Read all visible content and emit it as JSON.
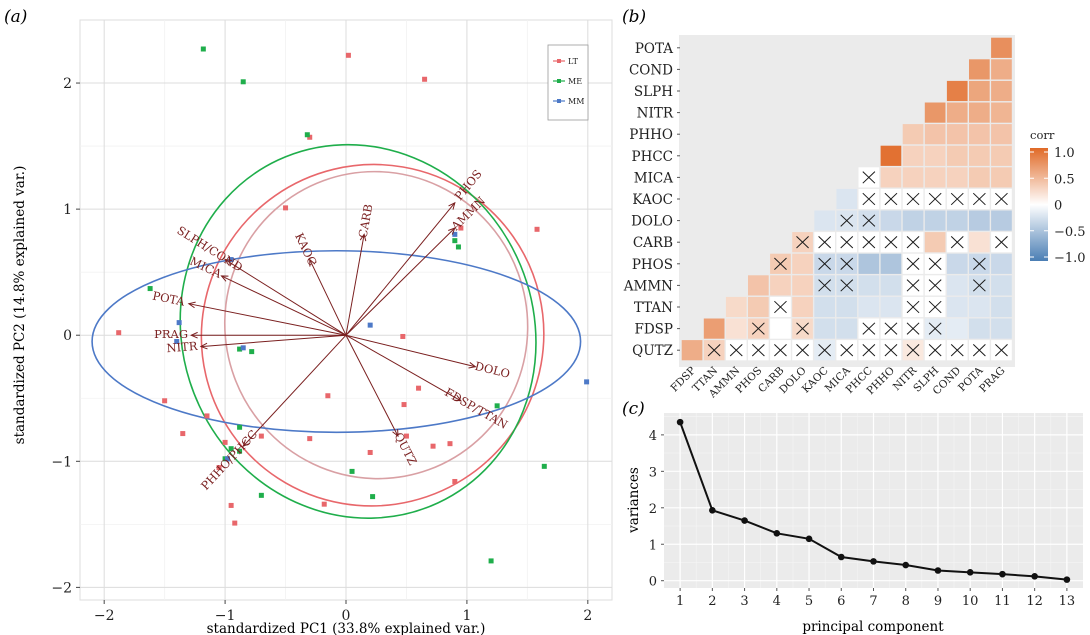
{
  "panel_labels": {
    "a": "(a)",
    "b": "(b)",
    "c": "(c)"
  },
  "chart_data": [
    {
      "type": "scatter",
      "panel": "(a)",
      "xlabel": "standardized PC1 (33.8% explained var.)",
      "ylabel": "standardized PC2 (14.8% explained var.)",
      "xlim": [
        -2.2,
        2.2
      ],
      "ylim": [
        -2.1,
        2.5
      ],
      "xticks": [
        -2,
        -1,
        0,
        1,
        2
      ],
      "yticks": [
        -2,
        -1,
        0,
        1,
        2
      ],
      "grid": true,
      "legend_position": "top-right",
      "series": [
        {
          "name": "LT",
          "color": "#e8676b",
          "points": [
            [
              0.02,
              2.22
            ],
            [
              0.65,
              2.03
            ],
            [
              -0.3,
              1.57
            ],
            [
              -0.5,
              1.01
            ],
            [
              0.95,
              0.85
            ],
            [
              1.58,
              0.84
            ],
            [
              0.47,
              -0.01
            ],
            [
              -0.15,
              -0.48
            ],
            [
              0.48,
              -0.55
            ],
            [
              0.6,
              -0.42
            ],
            [
              -0.7,
              -0.8
            ],
            [
              -1.0,
              -0.85
            ],
            [
              -0.3,
              -0.82
            ],
            [
              0.2,
              -0.93
            ],
            [
              0.72,
              -0.88
            ],
            [
              0.86,
              -0.86
            ],
            [
              -1.15,
              -0.64
            ],
            [
              -1.35,
              -0.78
            ],
            [
              -1.05,
              -1.05
            ],
            [
              -0.95,
              -1.35
            ],
            [
              -0.18,
              -1.34
            ],
            [
              -0.92,
              -1.49
            ],
            [
              -1.88,
              0.02
            ],
            [
              0.9,
              -1.16
            ],
            [
              -1.5,
              -0.52
            ],
            [
              0.5,
              -0.8
            ]
          ]
        },
        {
          "name": "ME",
          "color": "#1fae4b",
          "points": [
            [
              -1.18,
              2.27
            ],
            [
              -0.85,
              2.01
            ],
            [
              -0.32,
              1.59
            ],
            [
              0.9,
              0.75
            ],
            [
              0.93,
              0.7
            ],
            [
              -1.62,
              0.37
            ],
            [
              -0.88,
              -0.11
            ],
            [
              -0.78,
              -0.13
            ],
            [
              -0.88,
              -0.73
            ],
            [
              -0.95,
              -0.9
            ],
            [
              -1.0,
              -0.98
            ],
            [
              -0.88,
              -0.92
            ],
            [
              0.05,
              -1.08
            ],
            [
              0.22,
              -1.28
            ],
            [
              1.2,
              -1.79
            ],
            [
              1.64,
              -1.04
            ],
            [
              1.25,
              -0.56
            ],
            [
              -0.7,
              -1.27
            ]
          ]
        },
        {
          "name": "MM",
          "color": "#4d79c7",
          "points": [
            [
              -1.38,
              0.1
            ],
            [
              -0.95,
              0.6
            ],
            [
              -0.85,
              -0.1
            ],
            [
              0.2,
              0.08
            ],
            [
              -0.98,
              -0.98
            ],
            [
              1.99,
              -0.37
            ],
            [
              0.9,
              0.8
            ],
            [
              -1.4,
              -0.05
            ]
          ]
        }
      ],
      "loadings": [
        {
          "label": "SLPH/COND",
          "x": -1.0,
          "y": 0.6
        },
        {
          "label": "MICA",
          "x": -1.03,
          "y": 0.47
        },
        {
          "label": "POTA",
          "x": -1.3,
          "y": 0.25
        },
        {
          "label": "PRAG",
          "x": -1.28,
          "y": 0.0
        },
        {
          "label": "NITR",
          "x": -1.2,
          "y": -0.09
        },
        {
          "label": "KAOC",
          "x": -0.3,
          "y": 0.6
        },
        {
          "label": "CARB",
          "x": 0.15,
          "y": 0.8
        },
        {
          "label": "PHOS",
          "x": 0.9,
          "y": 1.05
        },
        {
          "label": "AMMN",
          "x": 0.9,
          "y": 0.85
        },
        {
          "label": "DOLO",
          "x": 1.07,
          "y": -0.25
        },
        {
          "label": "FDSP/TTAN",
          "x": 0.95,
          "y": -0.52
        },
        {
          "label": "QUTZ",
          "x": 0.43,
          "y": -0.8
        },
        {
          "label": "PHHO/PHCC",
          "x": -0.85,
          "y": -0.88
        }
      ]
    },
    {
      "type": "heatmap",
      "panel": "(b)",
      "variables_order": [
        "FDSP",
        "TTAN",
        "AMMN",
        "PHOS",
        "CARB",
        "DOLO",
        "KAOC",
        "MICA",
        "PHCC",
        "PHHO",
        "NITR",
        "SLPH",
        "COND",
        "POTA",
        "PRAG"
      ],
      "x_labels": [
        "FDSP",
        "TTAN",
        "AMMN",
        "PHOS",
        "CARB",
        "DOLO",
        "KAOC",
        "MICA",
        "PHCC",
        "PHHO",
        "NITR",
        "SLPH",
        "COND",
        "POTA",
        "PRAG"
      ],
      "y_labels": [
        "QUTZ",
        "FDSP",
        "TTAN",
        "AMMN",
        "PHOS",
        "CARB",
        "DOLO",
        "KAOC",
        "MICA",
        "PHCC",
        "PHHO",
        "NITR",
        "SLPH",
        "COND",
        "POTA"
      ],
      "legend": {
        "title": "corr",
        "ticks": [
          "1.0",
          "0.5",
          "0",
          "−0.5",
          "−1.0"
        ],
        "low": "#4a7eb4",
        "mid": "#ffffff",
        "high": "#e06a27"
      },
      "cells": [
        {
          "row": "QUTZ",
          "values": [
            0.55,
            0.3,
            null,
            null,
            null,
            null,
            -0.15,
            null,
            null,
            null,
            0.15,
            null,
            null,
            null,
            null
          ],
          "crossed": [
            false,
            true,
            true,
            true,
            true,
            true,
            true,
            true,
            true,
            true,
            true,
            true,
            true,
            true,
            true
          ]
        },
        {
          "row": "FDSP",
          "values": [
            null,
            0.65,
            0.2,
            0.3,
            null,
            0.25,
            -0.25,
            -0.25,
            null,
            null,
            null,
            -0.15,
            -0.15,
            -0.25,
            -0.25
          ],
          "crossed": [
            null,
            false,
            false,
            true,
            false,
            true,
            false,
            false,
            true,
            true,
            true,
            true,
            false,
            false,
            false
          ]
        },
        {
          "row": "TTAN",
          "values": [
            null,
            null,
            0.25,
            0.35,
            null,
            0.3,
            -0.25,
            -0.25,
            -0.2,
            -0.2,
            null,
            null,
            -0.2,
            -0.2,
            -0.25
          ],
          "crossed": [
            null,
            null,
            false,
            false,
            true,
            false,
            false,
            false,
            false,
            false,
            true,
            true,
            false,
            false,
            false
          ]
        },
        {
          "row": "AMMN",
          "values": [
            null,
            null,
            null,
            0.4,
            0.3,
            0.3,
            -0.25,
            -0.25,
            -0.25,
            -0.25,
            null,
            null,
            -0.2,
            -0.25,
            -0.25
          ],
          "crossed": [
            null,
            null,
            null,
            false,
            false,
            false,
            true,
            true,
            false,
            false,
            true,
            true,
            false,
            true,
            false
          ]
        },
        {
          "row": "PHOS",
          "values": [
            null,
            null,
            null,
            null,
            0.35,
            0.3,
            -0.3,
            -0.3,
            -0.45,
            -0.45,
            null,
            null,
            -0.3,
            -0.3,
            -0.3
          ],
          "crossed": [
            null,
            null,
            null,
            null,
            true,
            false,
            true,
            true,
            false,
            false,
            true,
            true,
            false,
            true,
            false
          ]
        },
        {
          "row": "CARB",
          "values": [
            null,
            null,
            null,
            null,
            null,
            0.3,
            null,
            null,
            null,
            null,
            null,
            0.35,
            null,
            0.2,
            null
          ],
          "crossed": [
            null,
            null,
            null,
            null,
            null,
            true,
            true,
            true,
            true,
            true,
            true,
            false,
            true,
            false,
            true
          ]
        },
        {
          "row": "DOLO",
          "values": [
            null,
            null,
            null,
            null,
            null,
            null,
            -0.2,
            -0.2,
            -0.25,
            -0.3,
            -0.35,
            -0.35,
            -0.35,
            -0.4,
            -0.4
          ],
          "crossed": [
            null,
            null,
            null,
            null,
            null,
            null,
            false,
            true,
            true,
            false,
            false,
            false,
            false,
            false,
            false
          ]
        },
        {
          "row": "KAOC",
          "values": [
            null,
            null,
            null,
            null,
            null,
            null,
            null,
            -0.2,
            null,
            null,
            null,
            null,
            null,
            null,
            null
          ],
          "crossed": [
            null,
            null,
            null,
            null,
            null,
            null,
            null,
            false,
            true,
            true,
            true,
            true,
            true,
            true,
            true
          ]
        },
        {
          "row": "MICA",
          "values": [
            null,
            null,
            null,
            null,
            null,
            null,
            null,
            null,
            null,
            0.3,
            0.3,
            0.3,
            0.3,
            0.35,
            0.35
          ],
          "crossed": [
            null,
            null,
            null,
            null,
            null,
            null,
            null,
            null,
            true,
            false,
            false,
            false,
            false,
            false,
            false
          ]
        },
        {
          "row": "PHCC",
          "values": [
            null,
            null,
            null,
            null,
            null,
            null,
            null,
            null,
            null,
            0.95,
            0.3,
            0.3,
            0.35,
            0.35,
            0.35
          ],
          "crossed": [
            null,
            null,
            null,
            null,
            null,
            null,
            null,
            null,
            null,
            false,
            false,
            false,
            false,
            false,
            false
          ]
        },
        {
          "row": "PHHO",
          "values": [
            null,
            null,
            null,
            null,
            null,
            null,
            null,
            null,
            null,
            null,
            0.35,
            0.4,
            0.4,
            0.4,
            0.4
          ],
          "crossed": [
            null,
            null,
            null,
            null,
            null,
            null,
            null,
            null,
            null,
            null,
            false,
            false,
            false,
            false,
            false
          ]
        },
        {
          "row": "NITR",
          "values": [
            null,
            null,
            null,
            null,
            null,
            null,
            null,
            null,
            null,
            null,
            null,
            0.7,
            0.55,
            0.55,
            0.5
          ],
          "crossed": [
            null,
            null,
            null,
            null,
            null,
            null,
            null,
            null,
            null,
            null,
            null,
            false,
            false,
            false,
            false
          ]
        },
        {
          "row": "SLPH",
          "values": [
            null,
            null,
            null,
            null,
            null,
            null,
            null,
            null,
            null,
            null,
            null,
            null,
            0.85,
            0.6,
            0.55
          ],
          "crossed": [
            null,
            null,
            null,
            null,
            null,
            null,
            null,
            null,
            null,
            null,
            null,
            null,
            false,
            false,
            false
          ]
        },
        {
          "row": "COND",
          "values": [
            null,
            null,
            null,
            null,
            null,
            null,
            null,
            null,
            null,
            null,
            null,
            null,
            null,
            0.7,
            0.55
          ],
          "crossed": [
            null,
            null,
            null,
            null,
            null,
            null,
            null,
            null,
            null,
            null,
            null,
            null,
            null,
            false,
            false
          ]
        },
        {
          "row": "POTA",
          "values": [
            null,
            null,
            null,
            null,
            null,
            null,
            null,
            null,
            null,
            null,
            null,
            null,
            null,
            null,
            0.75
          ],
          "crossed": [
            null,
            null,
            null,
            null,
            null,
            null,
            null,
            null,
            null,
            null,
            null,
            null,
            null,
            null,
            false
          ]
        }
      ]
    },
    {
      "type": "line",
      "panel": "(c)",
      "xlabel": "principal component",
      "ylabel": "variances",
      "x": [
        1,
        2,
        3,
        4,
        5,
        6,
        7,
        8,
        9,
        10,
        11,
        12,
        13
      ],
      "y": [
        4.35,
        1.93,
        1.65,
        1.3,
        1.15,
        0.65,
        0.53,
        0.43,
        0.28,
        0.23,
        0.18,
        0.12,
        0.03
      ],
      "xlim": [
        0.5,
        13.5
      ],
      "ylim": [
        -0.2,
        4.6
      ],
      "yticks": [
        0,
        1,
        2,
        3,
        4
      ],
      "grid": true
    }
  ]
}
